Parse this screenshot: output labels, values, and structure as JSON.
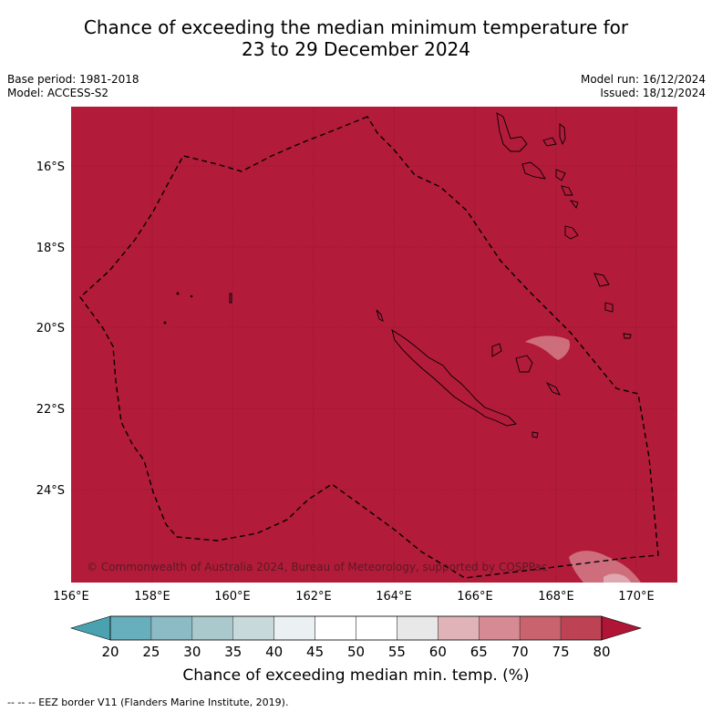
{
  "title": {
    "line1": "Chance of exceeding the median minimum temperature for",
    "line2": "23 to 29 December 2024"
  },
  "meta_left": {
    "base_period": "Base period: 1981-2018",
    "model": "Model: ACCESS-S2"
  },
  "meta_right": {
    "model_run": "Model run: 16/12/2024",
    "issued": "Issued: 18/12/2024"
  },
  "map": {
    "lat_labels": [
      "16°S",
      "18°S",
      "20°S",
      "22°S",
      "24°S"
    ],
    "lon_labels": [
      "156°E",
      "158°E",
      "160°E",
      "162°E",
      "164°E",
      "166°E",
      "168°E",
      "170°E"
    ],
    "background_color": "#b31b3a",
    "copyright": "© Commonwealth of Australia 2024, Bureau of Meteorology, supported by COSPPac"
  },
  "colorbar": {
    "ticks": [
      "20",
      "25",
      "30",
      "35",
      "40",
      "45",
      "50",
      "55",
      "60",
      "65",
      "70",
      "75",
      "80"
    ],
    "colors": [
      "#4aa2b1",
      "#68afbd",
      "#8cbbc5",
      "#a9c9cd",
      "#c8d9dc",
      "#ebf1f2",
      "#ffffff",
      "#ffffff",
      "#e8e8e8",
      "#e0b3b8",
      "#d68a94",
      "#c9646f",
      "#bd4254",
      "#b01535"
    ],
    "title": "Chance of exceeding median min. temp. (%)"
  },
  "footnote": "--  --  -- EEZ border V11 (Flanders Marine Institute, 2019)."
}
